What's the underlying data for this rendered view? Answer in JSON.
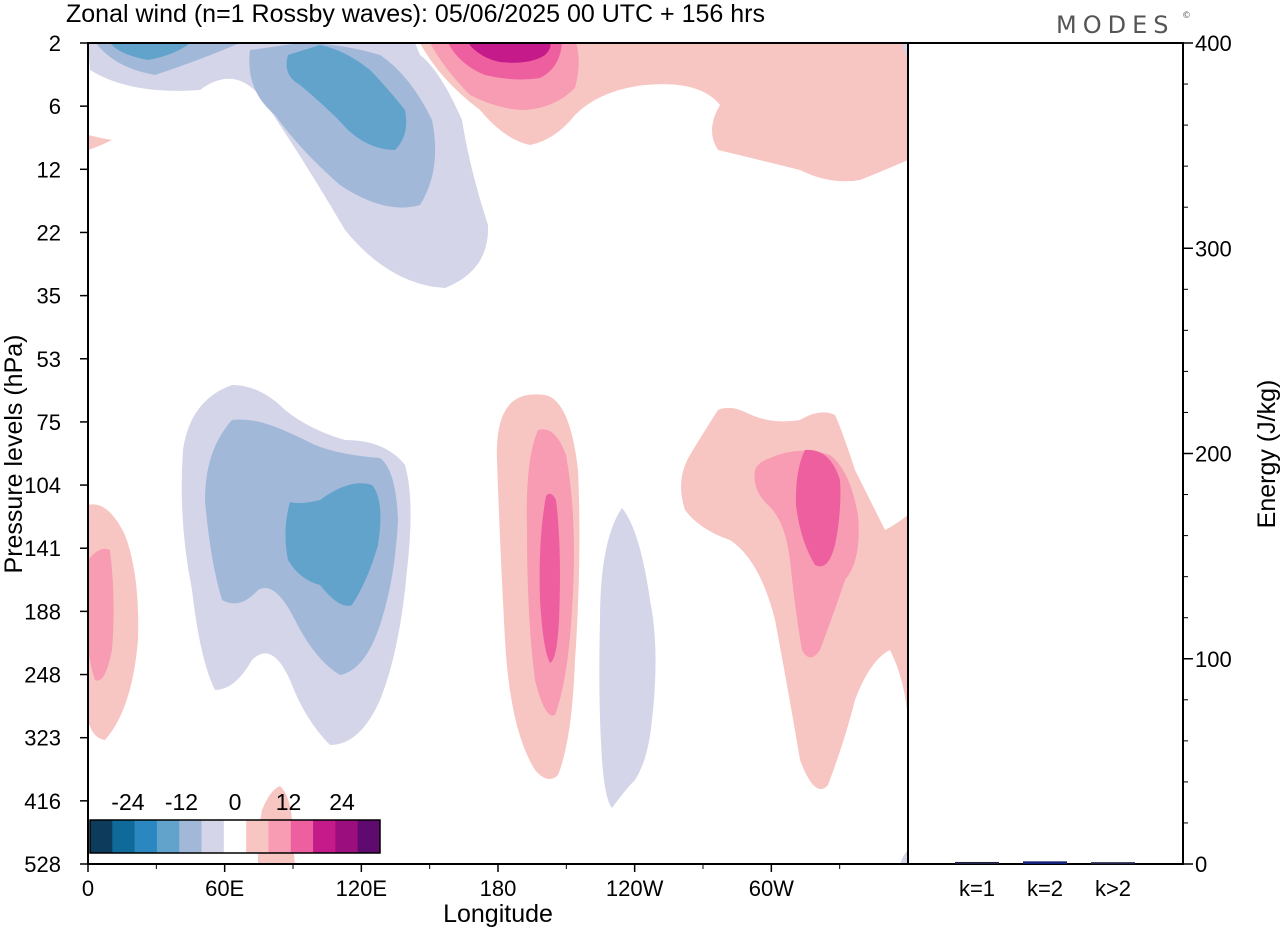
{
  "header": {
    "title": "Zonal wind (n=1 Rossby waves):  05/06/2025  00 UTC  + 156 hrs",
    "logo": "MODES",
    "logo_mark": "©"
  },
  "chart_data": [
    {
      "type": "heatmap",
      "title": "Zonal wind (n=1 Rossby waves):  05/06/2025  00 UTC  + 156 hrs",
      "xlabel": "Longitude",
      "ylabel": "Pressure levels (hPa)",
      "x_ticks": [
        "0",
        "60E",
        "120E",
        "180",
        "120W",
        "60W"
      ],
      "x_tick_values": [
        0,
        60,
        120,
        180,
        240,
        300
      ],
      "xlim": [
        0,
        360
      ],
      "y_ticks": [
        "2",
        "6",
        "12",
        "22",
        "35",
        "53",
        "75",
        "104",
        "141",
        "188",
        "248",
        "323",
        "416",
        "528"
      ],
      "y_scale": "categorical levels, 2 hPa at top, 528 hPa at bottom",
      "colorbar": {
        "labels": [
          "-24",
          "-12",
          "0",
          "12",
          "24"
        ],
        "label_values": [
          -24,
          -12,
          0,
          12,
          24
        ],
        "levels": [
          -30,
          -25,
          -20,
          -15,
          -10,
          -5,
          0,
          5,
          10,
          15,
          20,
          25,
          30
        ],
        "colors": [
          "#0c3b5c",
          "#0f6a9a",
          "#2b87bf",
          "#62a3cc",
          "#a1b8d9",
          "#d4d5e8",
          "#ffffff",
          "#f8c6c2",
          "#f79cb2",
          "#ee5fa0",
          "#c41a8a",
          "#9a0e7e",
          "#5e0a6e"
        ]
      },
      "features": [
        {
          "sign": "negative",
          "lon_range": [
            35,
            160
          ],
          "pressure_range": [
            2,
            35
          ],
          "peak_value": -15
        },
        {
          "sign": "negative",
          "lon_range": [
            40,
            140
          ],
          "pressure_range": [
            53,
            416
          ],
          "peak_value": -15
        },
        {
          "sign": "negative",
          "lon_range": [
            225,
            250
          ],
          "pressure_range": [
            104,
            416
          ],
          "peak_value": -5
        },
        {
          "sign": "positive",
          "lon_range": [
            150,
            215
          ],
          "pressure_range": [
            2,
            12
          ],
          "peak_value": 20
        },
        {
          "sign": "positive",
          "lon_range": [
            220,
            360
          ],
          "pressure_range": [
            2,
            12
          ],
          "peak_value": 5
        },
        {
          "sign": "positive",
          "lon_range": [
            0,
            20
          ],
          "pressure_range": [
            104,
            323
          ],
          "peak_value": 10
        },
        {
          "sign": "positive",
          "lon_range": [
            180,
            215
          ],
          "pressure_range": [
            75,
            416
          ],
          "peak_value": 15
        },
        {
          "sign": "positive",
          "lon_range": [
            260,
            360
          ],
          "pressure_range": [
            75,
            416
          ],
          "peak_value": 15
        },
        {
          "sign": "positive",
          "lon_range": [
            72,
            92
          ],
          "pressure_range": [
            416,
            528
          ],
          "peak_value": 5
        }
      ]
    },
    {
      "type": "bar",
      "ylabel": "Energy (J/kg)",
      "categories": [
        "k=1",
        "k=2",
        "k>2"
      ],
      "values": [
        0.5,
        0.8,
        0.4
      ],
      "ylim": [
        0,
        400
      ],
      "y_ticks": [
        "0",
        "100",
        "200",
        "300",
        "400"
      ]
    }
  ]
}
